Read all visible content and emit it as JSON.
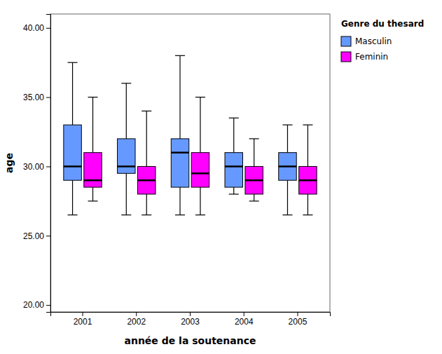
{
  "chart_data": {
    "type": "box",
    "xlabel": "année de la soutenance",
    "ylabel": "age",
    "legend_title": "Genre du thesard",
    "legend": "upper right",
    "grid": false,
    "categories": [
      "2001",
      "2002",
      "2003",
      "2004",
      "2005"
    ],
    "series": [
      {
        "name": "Masculin",
        "color": "#6699FF",
        "whisker_low": [
          26.5,
          26.5,
          26.5,
          28.0,
          26.5
        ],
        "q1": [
          29.0,
          29.5,
          28.5,
          28.5,
          29.0
        ],
        "median": [
          30.0,
          30.0,
          31.0,
          30.0,
          30.0
        ],
        "q3": [
          33.0,
          32.0,
          32.0,
          31.0,
          31.0
        ],
        "whisker_high": [
          37.5,
          36.0,
          38.0,
          33.5,
          33.0
        ]
      },
      {
        "name": "Feminin",
        "color": "#FF00FF",
        "whisker_low": [
          27.5,
          26.5,
          26.5,
          27.5,
          26.5
        ],
        "q1": [
          28.5,
          28.0,
          28.5,
          28.0,
          28.0
        ],
        "median": [
          29.0,
          29.0,
          29.5,
          29.0,
          29.0
        ],
        "q3": [
          31.0,
          30.0,
          31.0,
          30.0,
          30.0
        ],
        "whisker_high": [
          35.0,
          34.0,
          35.0,
          32.0,
          33.0
        ]
      }
    ],
    "ylim": [
      19.5,
      41.0
    ],
    "yticks": [
      {
        "value": 20.0,
        "label": "20.00"
      },
      {
        "value": 25.0,
        "label": "25.00"
      },
      {
        "value": 30.0,
        "label": "30.00"
      },
      {
        "value": 35.0,
        "label": "35.00"
      },
      {
        "value": 40.0,
        "label": "40.00"
      }
    ]
  }
}
